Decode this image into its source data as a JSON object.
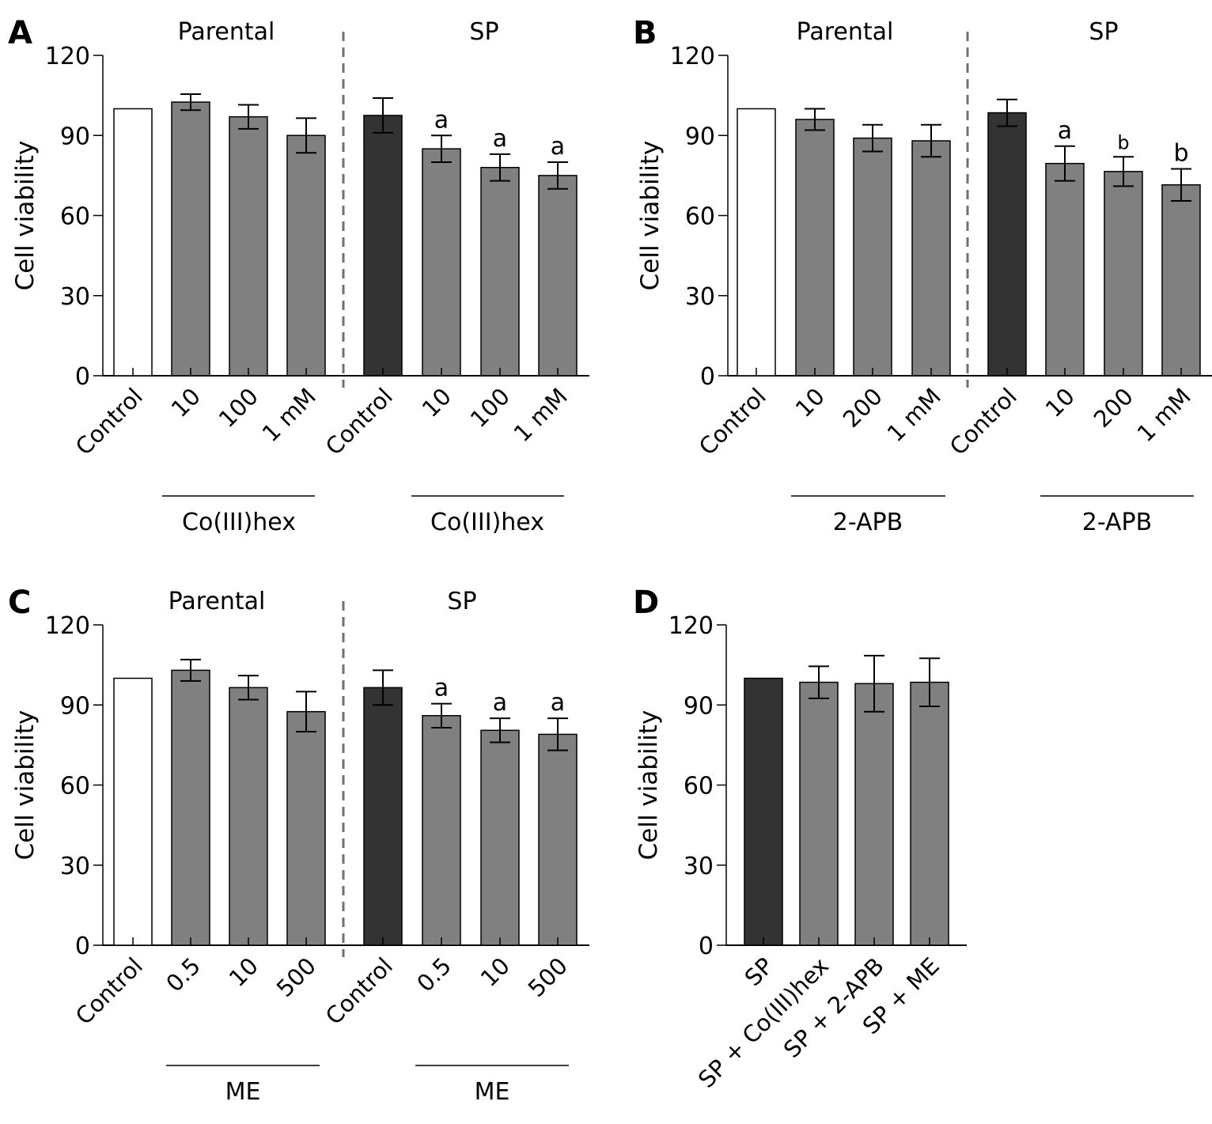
{
  "chart_data": [
    {
      "panel": "A",
      "type": "bar",
      "ylabel": "Cell viability",
      "ylim": [
        0,
        120
      ],
      "yticks": [
        0,
        30,
        60,
        90,
        120
      ],
      "group_titles": [
        "Parental",
        "SP"
      ],
      "treatment_labels": [
        "Co(III)hex",
        "Co(III)hex"
      ],
      "categories": [
        "Control",
        "10",
        "100",
        "1 mM",
        "Control",
        "10",
        "100",
        "1 mM"
      ],
      "groups": [
        "Parental",
        "Parental",
        "Parental",
        "Parental",
        "SP",
        "SP",
        "SP",
        "SP"
      ],
      "values": [
        100,
        102.5,
        97,
        90,
        97.5,
        85,
        78,
        75
      ],
      "errors": [
        0,
        3,
        4.5,
        6.5,
        6.5,
        5,
        5,
        5
      ],
      "annotations": [
        "",
        "",
        "",
        "",
        "",
        "a",
        "a",
        "a"
      ],
      "bar_colors": [
        "#ffffff",
        "#808080",
        "#808080",
        "#808080",
        "#333333",
        "#808080",
        "#808080",
        "#808080"
      ],
      "divider": "dashed line between Parental and SP"
    },
    {
      "panel": "B",
      "type": "bar",
      "ylabel": "Cell viability",
      "ylim": [
        0,
        120
      ],
      "yticks": [
        0,
        30,
        60,
        90,
        120
      ],
      "group_titles": [
        "Parental",
        "SP"
      ],
      "treatment_labels": [
        "2-APB",
        "2-APB"
      ],
      "categories": [
        "Control",
        "10",
        "200",
        "1 mM",
        "Control",
        "10",
        "200",
        "1 mM"
      ],
      "groups": [
        "Parental",
        "Parental",
        "Parental",
        "Parental",
        "SP",
        "SP",
        "SP",
        "SP"
      ],
      "values": [
        100,
        96,
        89,
        88,
        98.5,
        79.5,
        76.5,
        71.5
      ],
      "errors": [
        0,
        4,
        5,
        6,
        5,
        6.5,
        5.5,
        6
      ],
      "annotations": [
        "",
        "",
        "",
        "",
        "",
        "a",
        "b",
        "b"
      ],
      "bar_colors": [
        "#ffffff",
        "#808080",
        "#808080",
        "#808080",
        "#333333",
        "#808080",
        "#808080",
        "#808080"
      ],
      "divider": "dashed line between Parental and SP"
    },
    {
      "panel": "C",
      "type": "bar",
      "ylabel": "Cell viability",
      "ylim": [
        0,
        120
      ],
      "yticks": [
        0,
        30,
        60,
        90,
        120
      ],
      "group_titles": [
        "Parental",
        "SP"
      ],
      "treatment_labels": [
        "ME",
        "ME"
      ],
      "categories": [
        "Control",
        "0.5",
        "10",
        "500",
        "Control",
        "0.5",
        "10",
        "500"
      ],
      "groups": [
        "Parental",
        "Parental",
        "Parental",
        "Parental",
        "SP",
        "SP",
        "SP",
        "SP"
      ],
      "values": [
        100,
        103,
        96.5,
        87.5,
        96.5,
        86,
        80.5,
        79
      ],
      "errors": [
        0,
        4,
        4.5,
        7.5,
        6.5,
        4.5,
        4.5,
        6
      ],
      "annotations": [
        "",
        "",
        "",
        "",
        "",
        "a",
        "a",
        "a"
      ],
      "bar_colors": [
        "#ffffff",
        "#808080",
        "#808080",
        "#808080",
        "#333333",
        "#808080",
        "#808080",
        "#808080"
      ],
      "divider": "dashed line between Parental and SP"
    },
    {
      "panel": "D",
      "type": "bar",
      "ylabel": "Cell viability",
      "ylim": [
        0,
        120
      ],
      "yticks": [
        0,
        30,
        60,
        90,
        120
      ],
      "group_titles": [],
      "treatment_labels": [],
      "categories": [
        "SP",
        "SP + Co(III)hex",
        "SP + 2-APB",
        "SP + ME"
      ],
      "values": [
        100,
        98.5,
        98,
        98.5
      ],
      "errors": [
        0,
        6,
        10.5,
        9
      ],
      "annotations": [
        "",
        "",
        "",
        ""
      ],
      "bar_colors": [
        "#333333",
        "#808080",
        "#808080",
        "#808080"
      ]
    }
  ],
  "panel_letters": [
    "A",
    "B",
    "C",
    "D"
  ]
}
